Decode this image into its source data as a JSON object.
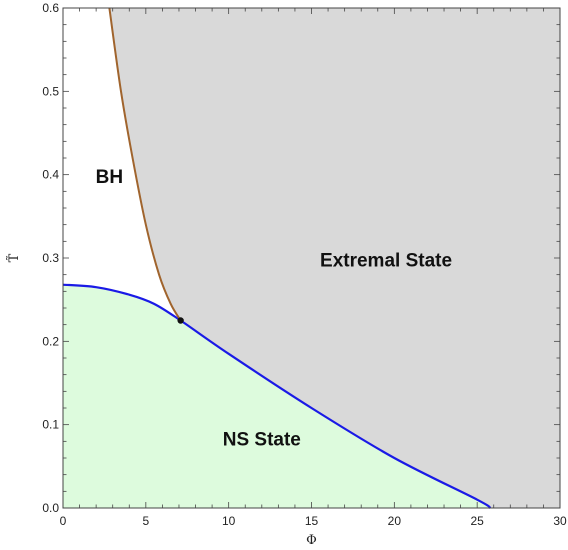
{
  "chart_data": {
    "type": "area",
    "title": "",
    "xlabel": "Φ",
    "ylabel": "T̃",
    "xlim": [
      0,
      30
    ],
    "ylim": [
      0,
      0.6
    ],
    "xticks": [
      0,
      5,
      10,
      15,
      20,
      25,
      30
    ],
    "yticks": [
      0.0,
      0.1,
      0.2,
      0.3,
      0.4,
      0.5,
      0.6
    ],
    "xtick_labels": [
      "0",
      "5",
      "10",
      "15",
      "20",
      "25",
      "30"
    ],
    "ytick_labels": [
      "0.0",
      "0.1",
      "0.2",
      "0.3",
      "0.4",
      "0.5",
      "0.6"
    ],
    "grid": false,
    "series": [
      {
        "color": "#1a1ae6",
        "x": [
          0,
          2,
          4,
          5.5,
          7.1,
          10,
          15,
          20,
          25,
          25.8
        ],
        "y": [
          0.268,
          0.265,
          0.256,
          0.245,
          0.225,
          0.185,
          0.12,
          0.06,
          0.01,
          0.0
        ]
      },
      {
        "color": "#a0642d",
        "x": [
          2.8,
          3.5,
          4.2,
          5.0,
          5.8,
          6.5,
          7.1
        ],
        "y": [
          0.6,
          0.5,
          0.42,
          0.34,
          0.28,
          0.245,
          0.225
        ]
      }
    ],
    "points": [
      {
        "x": 7.1,
        "y": 0.225,
        "color": "#111111"
      }
    ],
    "regions": [
      {
        "label": "BH",
        "fill": "#ffffff",
        "label_x": 2.8,
        "label_y": 0.39
      },
      {
        "label": "Extremal State",
        "fill": "#d9d9d9",
        "label_x": 19.5,
        "label_y": 0.29
      },
      {
        "label": "NS State",
        "fill": "#ddfbdd",
        "label_x": 12,
        "label_y": 0.075
      }
    ]
  }
}
